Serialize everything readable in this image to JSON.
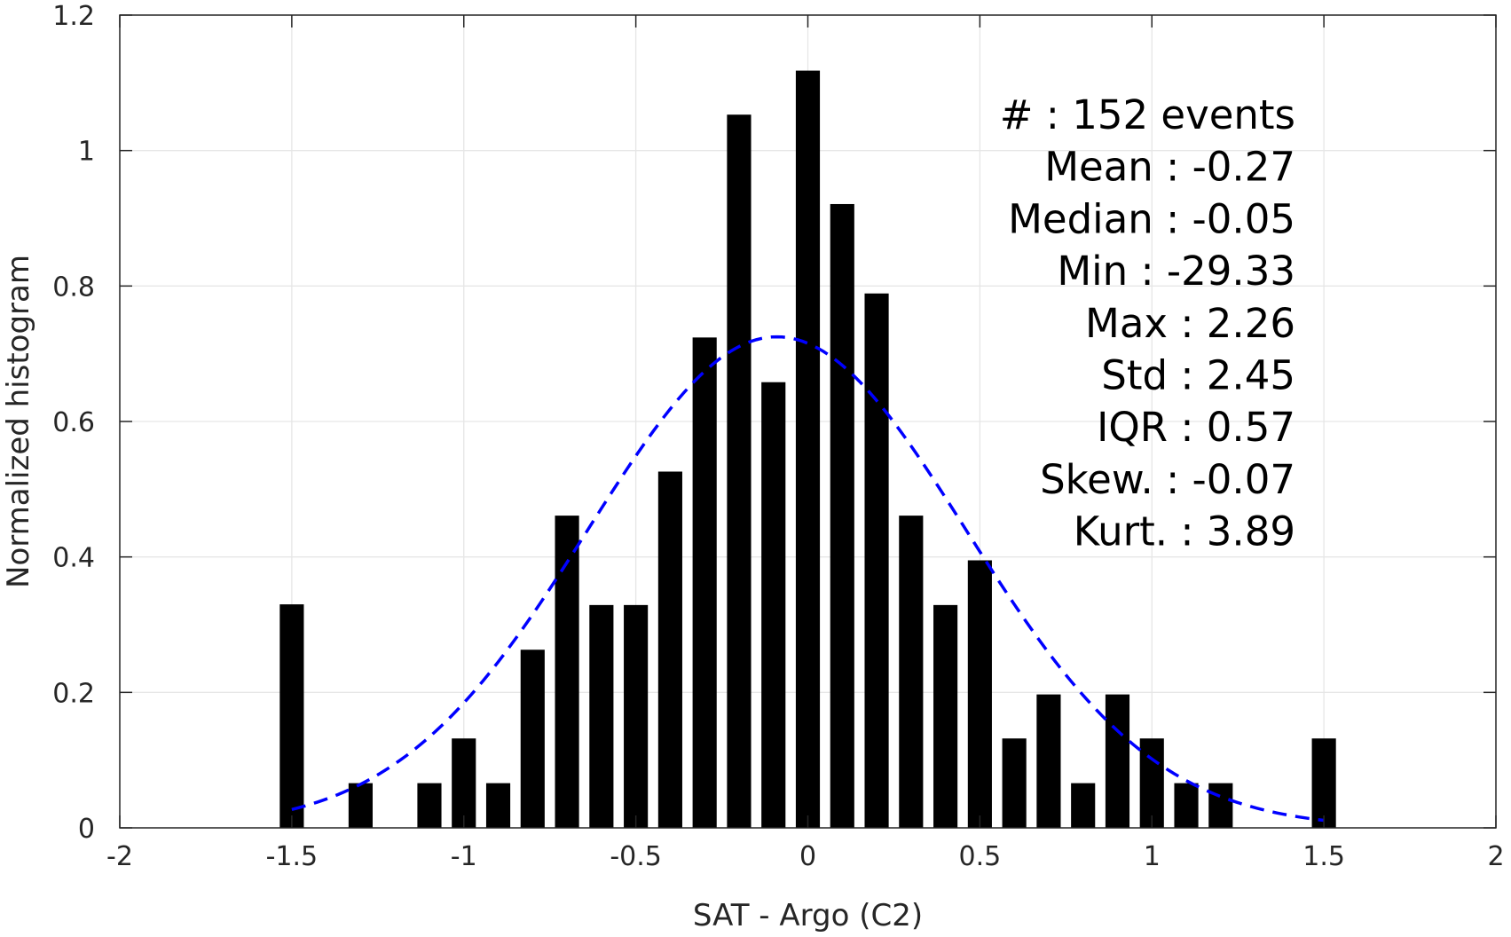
{
  "chart_data": {
    "type": "bar",
    "xlabel": "SAT - Argo (C2)",
    "ylabel": "Normalized histogram",
    "xlim": [
      -2,
      2
    ],
    "ylim": [
      0,
      1.2
    ],
    "x_ticks": [
      -2,
      -1.5,
      -1,
      -0.5,
      0,
      0.5,
      1,
      1.5,
      2
    ],
    "x_tick_labels": [
      "-2",
      "-1.5",
      "-1",
      "-0.5",
      "0",
      "0.5",
      "1",
      "1.5",
      "2"
    ],
    "y_ticks": [
      0,
      0.2,
      0.4,
      0.6,
      0.8,
      1,
      1.2
    ],
    "y_tick_labels": [
      "0",
      "0.2",
      "0.4",
      "0.6",
      "0.8",
      "1",
      "1.2"
    ],
    "grid": true,
    "bar_width": 0.07,
    "bars": {
      "x": [
        -1.5,
        -1.3,
        -1.1,
        -1.0,
        -0.9,
        -0.8,
        -0.7,
        -0.6,
        -0.5,
        -0.4,
        -0.3,
        -0.2,
        -0.1,
        0.0,
        0.1,
        0.2,
        0.3,
        0.4,
        0.5,
        0.6,
        0.7,
        0.8,
        0.9,
        1.0,
        1.1,
        1.2,
        1.5
      ],
      "y": [
        0.33,
        0.066,
        0.066,
        0.132,
        0.066,
        0.263,
        0.461,
        0.329,
        0.329,
        0.526,
        0.724,
        1.053,
        0.658,
        1.118,
        0.921,
        0.789,
        0.461,
        0.329,
        0.395,
        0.132,
        0.197,
        0.066,
        0.197,
        0.132,
        0.066,
        0.066,
        0.132
      ]
    },
    "fit_curve": {
      "style": "dashed",
      "color": "#0000ff",
      "mean": -0.09,
      "sigma": 0.55,
      "peak": 0.725,
      "x_range": [
        -1.5,
        1.5
      ]
    },
    "stats": [
      {
        "label": "#  : 152 events"
      },
      {
        "label": "Mean : -0.27"
      },
      {
        "label": "Median : -0.05"
      },
      {
        "label": "Min : -29.33"
      },
      {
        "label": "Max : 2.26"
      },
      {
        "label": "Std : 2.45"
      },
      {
        "label": "IQR : 0.57"
      },
      {
        "label": "Skew. : -0.07"
      },
      {
        "label": "Kurt. : 3.89"
      }
    ],
    "colors": {
      "bar": "#000000",
      "grid": "#e6e6e6",
      "axis": "#262626",
      "fit": "#0000ff"
    }
  }
}
